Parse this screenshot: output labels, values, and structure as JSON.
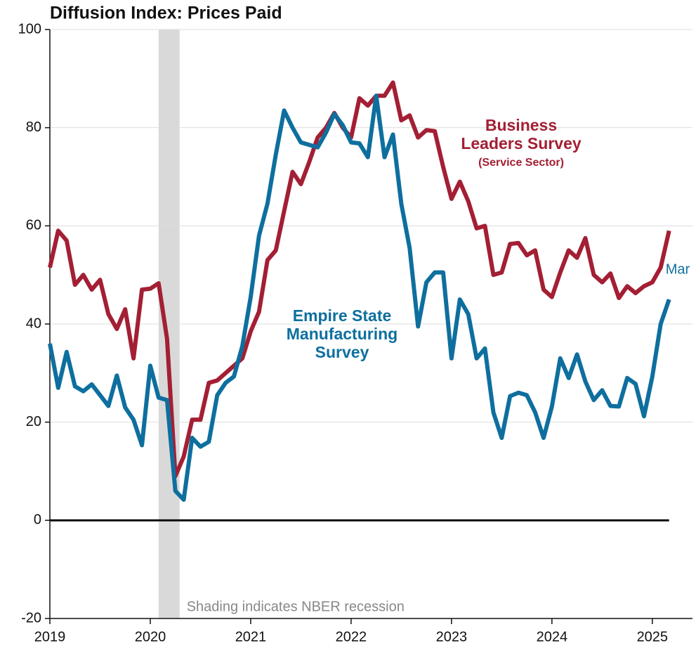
{
  "chart_data": {
    "type": "line",
    "title": "Diffusion Index: Prices Paid",
    "x": [
      2019,
      2019.083,
      2019.167,
      2019.25,
      2019.333,
      2019.417,
      2019.5,
      2019.583,
      2019.667,
      2019.75,
      2019.833,
      2019.917,
      2020,
      2020.083,
      2020.167,
      2020.25,
      2020.333,
      2020.417,
      2020.5,
      2020.583,
      2020.667,
      2020.75,
      2020.833,
      2020.917,
      2021,
      2021.083,
      2021.167,
      2021.25,
      2021.333,
      2021.417,
      2021.5,
      2021.583,
      2021.667,
      2021.75,
      2021.833,
      2021.917,
      2022,
      2022.083,
      2022.167,
      2022.25,
      2022.333,
      2022.417,
      2022.5,
      2022.583,
      2022.667,
      2022.75,
      2022.833,
      2022.917,
      2023,
      2023.083,
      2023.167,
      2023.25,
      2023.333,
      2023.417,
      2023.5,
      2023.583,
      2023.667,
      2023.75,
      2023.833,
      2023.917,
      2024,
      2024.083,
      2024.167,
      2024.25,
      2024.333,
      2024.417,
      2024.5,
      2024.583,
      2024.667,
      2024.75,
      2024.833,
      2024.917,
      2025,
      2025.083,
      2025.167
    ],
    "series": [
      {
        "name": "Business Leaders Survey",
        "label": [
          "Business",
          "Leaders Survey",
          "(Service Sector)"
        ],
        "color": "#a31f34",
        "values": [
          51.5,
          59,
          57,
          48,
          50,
          47,
          49,
          42,
          39,
          43,
          33,
          47,
          47.2,
          48.3,
          37,
          9,
          13,
          20.5,
          20.5,
          28,
          28.5,
          30,
          31.5,
          33,
          38.5,
          42.5,
          53,
          55,
          63,
          71,
          68.5,
          73,
          78,
          80,
          83,
          80,
          78,
          86,
          84.5,
          86.5,
          86.5,
          89.2,
          81.5,
          82.5,
          78,
          79.5,
          79.3,
          72,
          65.5,
          69,
          65,
          59.5,
          60,
          50,
          50.5,
          56.3,
          56.5,
          54,
          55,
          47,
          45.5,
          50.5,
          55,
          53.5,
          57.5,
          50,
          48.5,
          50.3,
          45.3,
          47.7,
          46.3,
          47.7,
          48.5,
          51.5,
          59
        ]
      },
      {
        "name": "Empire State Manufacturing Survey",
        "label": [
          "Empire State",
          "Manufacturing",
          "Survey"
        ],
        "color": "#0e6f9e",
        "values": [
          36,
          27,
          34.3,
          27.3,
          26.3,
          27.7,
          25.5,
          23.3,
          29.5,
          23,
          20.5,
          15.3,
          31.5,
          25,
          24.5,
          6,
          4.2,
          16.8,
          15,
          16,
          25.5,
          28,
          29.3,
          35.5,
          45.5,
          58,
          64.5,
          74.5,
          83.5,
          80,
          77,
          76.5,
          76,
          79,
          82.8,
          80.5,
          77,
          76.8,
          74,
          86.5,
          74,
          78.6,
          64.5,
          55.5,
          39.5,
          48.5,
          50.5,
          50.5,
          33,
          45,
          42,
          33,
          35,
          22,
          16.8,
          25.3,
          26,
          25.5,
          22,
          16.8,
          23.2,
          33,
          29,
          33.8,
          28.3,
          24.5,
          26.5,
          23.3,
          23.2,
          29,
          27.8,
          21.2,
          29.3,
          40,
          45
        ]
      }
    ],
    "end_label": "Mar",
    "recession": [
      2020.083,
      2020.292
    ],
    "recession_note": "Shading indicates NBER recession",
    "xlim": [
      2019,
      2025.4
    ],
    "xticks": [
      2019,
      2020,
      2021,
      2022,
      2023,
      2024,
      2025
    ],
    "ylim": [
      -20,
      100
    ],
    "yticks": [
      -20,
      0,
      20,
      40,
      60,
      80,
      100
    ],
    "grid": true
  }
}
